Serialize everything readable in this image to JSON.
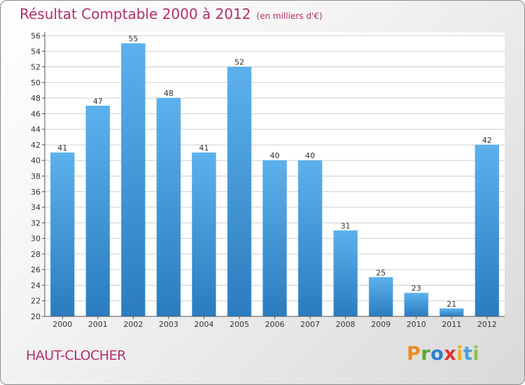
{
  "header": {
    "title": "Résultat Comptable 2000 à 2012",
    "subtitle": "(en milliers d'€)"
  },
  "place": "HAUT-CLOCHER",
  "logo": {
    "letters": [
      "P",
      "r",
      "o",
      "x",
      "i",
      "t",
      "i"
    ],
    "colors": [
      "#f08a1e",
      "#5aa832",
      "#2b7fd0",
      "#e03030",
      "#f0b020",
      "#4aa0e0",
      "#8cc23f"
    ]
  },
  "colors": {
    "bar": "#3e9ee3",
    "bar_light": "#5cb1ec",
    "bar_dark": "#2b7cbf",
    "grid": "#cfcfcf",
    "title": "#b0306a"
  },
  "chart_data": {
    "type": "bar",
    "title": "Résultat Comptable 2000 à 2012",
    "ylabel": "(en milliers d'€)",
    "categories": [
      "2000",
      "2001",
      "2002",
      "2003",
      "2004",
      "2005",
      "2006",
      "2007",
      "2008",
      "2009",
      "2010",
      "2011",
      "2012"
    ],
    "values": [
      41,
      47,
      55,
      48,
      41,
      52,
      40,
      40,
      31,
      25,
      23,
      21,
      42
    ],
    "ylim": [
      20,
      56
    ],
    "yticks": [
      20,
      22,
      24,
      26,
      28,
      30,
      32,
      34,
      36,
      38,
      40,
      42,
      44,
      46,
      48,
      50,
      52,
      54,
      56
    ],
    "grid": true
  }
}
